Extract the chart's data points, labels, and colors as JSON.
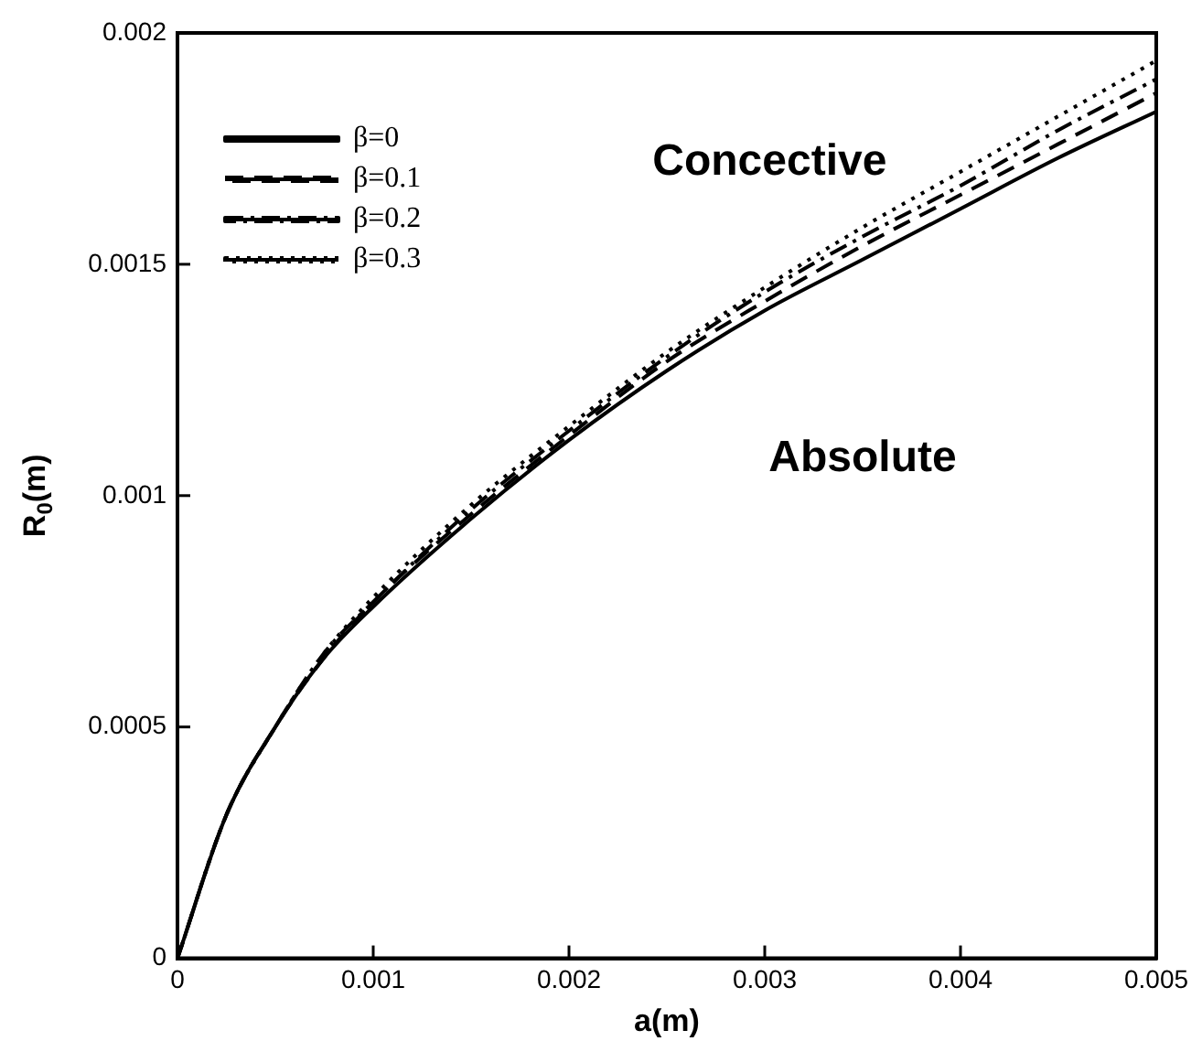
{
  "chart_data": {
    "type": "line",
    "xlabel": "a(m)",
    "ylabel": "R$_{0}$(m)",
    "x": [
      0,
      0.00025,
      0.0005,
      0.00075,
      0.001,
      0.0015,
      0.002,
      0.0025,
      0.003,
      0.0035,
      0.004,
      0.0045,
      0.005
    ],
    "series": [
      {
        "name": "β=0",
        "color": "#000000",
        "line_style": "solid",
        "values": [
          0,
          0.00031,
          0.0005,
          0.00065,
          0.00076,
          0.00095,
          0.00112,
          0.00127,
          0.0014,
          0.00151,
          0.00162,
          0.00173,
          0.00183
        ]
      },
      {
        "name": "β=0.1",
        "color": "#000000",
        "line_style": "dashed",
        "values": [
          0,
          0.00031,
          0.0005,
          0.00065,
          0.00077,
          0.00096,
          0.00113,
          0.00129,
          0.00142,
          0.00154,
          0.00165,
          0.00176,
          0.00187
        ]
      },
      {
        "name": "β=0.2",
        "color": "#000000",
        "line_style": "dashdot",
        "values": [
          0,
          0.00031,
          0.0005,
          0.00066,
          0.00077,
          0.00097,
          0.00114,
          0.0013,
          0.00144,
          0.00156,
          0.00167,
          0.00179,
          0.0019
        ]
      },
      {
        "name": "β=0.3",
        "color": "#000000",
        "line_style": "dotted",
        "values": [
          0,
          0.00031,
          0.0005,
          0.00066,
          0.00078,
          0.00098,
          0.00115,
          0.00131,
          0.00145,
          0.00158,
          0.0017,
          0.00182,
          0.00194
        ]
      }
    ],
    "xlim": [
      0,
      0.005
    ],
    "xticks": [
      0,
      0.001,
      0.002,
      0.003,
      0.004,
      0.005
    ],
    "ylim": [
      0,
      0.002
    ],
    "yticks": [
      0,
      0.0005,
      0.001,
      0.0015,
      0.002
    ],
    "grid": false,
    "legend": "top left",
    "marker": "none",
    "annotations": [
      "Concective",
      "Absolute"
    ]
  }
}
